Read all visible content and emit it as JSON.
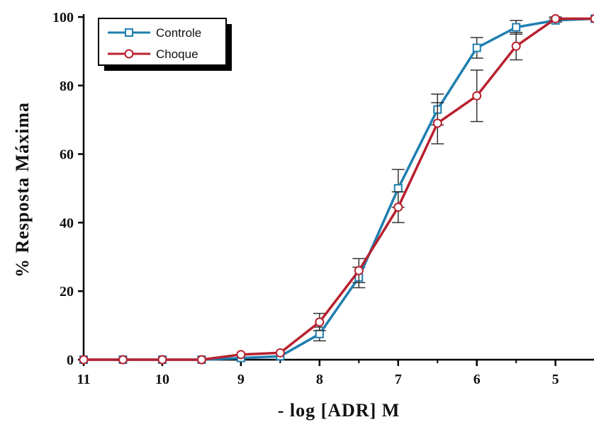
{
  "chart_data": {
    "type": "line",
    "xlabel": "- log [ADR] M",
    "ylabel": "% Resposta Máxima",
    "x_reversed": true,
    "xlim": [
      11,
      4.6
    ],
    "ylim": [
      0,
      100
    ],
    "x_ticks": [
      11,
      10,
      9,
      8,
      7,
      6,
      5
    ],
    "y_ticks": [
      0,
      20,
      40,
      60,
      80,
      100
    ],
    "grid": false,
    "legend_position": "top-left",
    "series": [
      {
        "name": "Controle",
        "color": "#1f7fb0",
        "marker": "square",
        "x": [
          11,
          10.5,
          10,
          9.5,
          9,
          8.5,
          8,
          7.5,
          7,
          6.5,
          6,
          5.5,
          5,
          4.5
        ],
        "y": [
          0,
          0,
          0,
          0,
          0.5,
          1,
          7.5,
          24,
          50,
          73,
          91,
          97,
          99,
          99.5
        ],
        "err": [
          0,
          0,
          0,
          0,
          0,
          0,
          2,
          3,
          5.5,
          4.5,
          3,
          2,
          0.5,
          0
        ]
      },
      {
        "name": "Choque",
        "color": "#b8202e",
        "marker": "circle",
        "x": [
          11,
          10.5,
          10,
          9.5,
          9,
          8.5,
          8,
          7.5,
          7,
          6.5,
          6,
          5.5,
          5,
          4.5
        ],
        "y": [
          0,
          0,
          0,
          0,
          1.5,
          2,
          11,
          26,
          44.5,
          69,
          77,
          91.5,
          99.5,
          99.5
        ],
        "err": [
          0,
          0,
          0,
          0,
          0,
          0,
          2.5,
          3.5,
          4.5,
          6,
          7.5,
          4,
          0.5,
          0
        ]
      }
    ]
  }
}
